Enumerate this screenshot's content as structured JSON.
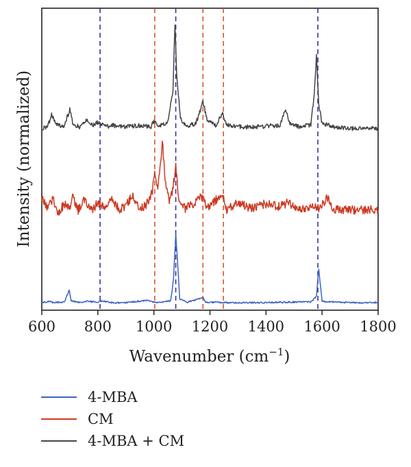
{
  "chart_data": {
    "type": "line",
    "title": "",
    "xlabel": "Wavenumber (cm",
    "xlabel_sup": "−1",
    "xlabel_close": ")",
    "ylabel": "Intensity (normalized)",
    "xlim": [
      600,
      1800
    ],
    "xticks": [
      600,
      800,
      1000,
      1200,
      1400,
      1600,
      1800
    ],
    "y_ticks_labeled": false,
    "grid": false,
    "legend_placement": "below",
    "series": [
      {
        "name": "4-MBA",
        "color": "#3b62c4",
        "points": [
          [
            600,
            0.02
          ],
          [
            630,
            0.04
          ],
          [
            640,
            0.02
          ],
          [
            680,
            0.03
          ],
          [
            698,
            0.22
          ],
          [
            705,
            0.05
          ],
          [
            740,
            0.02
          ],
          [
            760,
            0.04
          ],
          [
            800,
            0.03
          ],
          [
            808,
            0.05
          ],
          [
            850,
            0.02
          ],
          [
            900,
            0.02
          ],
          [
            980,
            0.06
          ],
          [
            1000,
            0.03
          ],
          [
            1020,
            0.02
          ],
          [
            1060,
            0.05
          ],
          [
            1070,
            0.4
          ],
          [
            1078,
            1.12
          ],
          [
            1084,
            0.7
          ],
          [
            1092,
            0.08
          ],
          [
            1120,
            0.03
          ],
          [
            1175,
            0.1
          ],
          [
            1185,
            0.03
          ],
          [
            1250,
            0.02
          ],
          [
            1400,
            0.02
          ],
          [
            1500,
            0.03
          ],
          [
            1560,
            0.03
          ],
          [
            1580,
            0.12
          ],
          [
            1588,
            0.55
          ],
          [
            1593,
            0.35
          ],
          [
            1600,
            0.04
          ],
          [
            1700,
            0.02
          ],
          [
            1800,
            0.02
          ]
        ]
      },
      {
        "name": "CM",
        "color": "#cc3a22",
        "points": [
          [
            600,
            1.7
          ],
          [
            610,
            1.62
          ],
          [
            620,
            1.55
          ],
          [
            640,
            1.68
          ],
          [
            660,
            1.45
          ],
          [
            680,
            1.6
          ],
          [
            700,
            1.52
          ],
          [
            710,
            1.72
          ],
          [
            730,
            1.5
          ],
          [
            750,
            1.66
          ],
          [
            780,
            1.48
          ],
          [
            800,
            1.62
          ],
          [
            820,
            1.53
          ],
          [
            850,
            1.65
          ],
          [
            880,
            1.5
          ],
          [
            900,
            1.58
          ],
          [
            925,
            1.73
          ],
          [
            950,
            1.5
          ],
          [
            980,
            1.62
          ],
          [
            995,
            1.8
          ],
          [
            1003,
            2.1
          ],
          [
            1012,
            1.85
          ],
          [
            1020,
            2.05
          ],
          [
            1030,
            2.62
          ],
          [
            1040,
            2.0
          ],
          [
            1055,
            1.65
          ],
          [
            1065,
            1.75
          ],
          [
            1078,
            2.2
          ],
          [
            1088,
            1.7
          ],
          [
            1110,
            1.52
          ],
          [
            1140,
            1.6
          ],
          [
            1175,
            1.72
          ],
          [
            1190,
            1.55
          ],
          [
            1220,
            1.65
          ],
          [
            1245,
            1.75
          ],
          [
            1260,
            1.5
          ],
          [
            1300,
            1.62
          ],
          [
            1350,
            1.52
          ],
          [
            1400,
            1.6
          ],
          [
            1450,
            1.55
          ],
          [
            1480,
            1.62
          ],
          [
            1520,
            1.5
          ],
          [
            1570,
            1.58
          ],
          [
            1590,
            1.52
          ],
          [
            1620,
            1.7
          ],
          [
            1640,
            1.52
          ],
          [
            1700,
            1.5
          ],
          [
            1750,
            1.5
          ],
          [
            1800,
            1.5
          ]
        ]
      },
      {
        "name": "4-MBA + CM",
        "color": "#444444",
        "points": [
          [
            600,
            2.8
          ],
          [
            620,
            2.82
          ],
          [
            635,
            3.02
          ],
          [
            648,
            2.9
          ],
          [
            660,
            2.85
          ],
          [
            680,
            2.84
          ],
          [
            700,
            3.1
          ],
          [
            712,
            2.86
          ],
          [
            740,
            2.82
          ],
          [
            760,
            2.95
          ],
          [
            780,
            2.85
          ],
          [
            800,
            2.9
          ],
          [
            830,
            2.83
          ],
          [
            850,
            2.85
          ],
          [
            900,
            2.83
          ],
          [
            950,
            2.85
          ],
          [
            990,
            2.83
          ],
          [
            1000,
            2.93
          ],
          [
            1010,
            2.86
          ],
          [
            1030,
            2.85
          ],
          [
            1050,
            2.9
          ],
          [
            1068,
            3.4
          ],
          [
            1075,
            4.45
          ],
          [
            1082,
            3.6
          ],
          [
            1095,
            2.95
          ],
          [
            1120,
            2.84
          ],
          [
            1150,
            2.88
          ],
          [
            1175,
            3.22
          ],
          [
            1190,
            2.95
          ],
          [
            1220,
            2.84
          ],
          [
            1245,
            3.05
          ],
          [
            1260,
            2.86
          ],
          [
            1300,
            2.83
          ],
          [
            1350,
            2.82
          ],
          [
            1400,
            2.84
          ],
          [
            1450,
            2.85
          ],
          [
            1470,
            3.1
          ],
          [
            1485,
            2.88
          ],
          [
            1520,
            2.83
          ],
          [
            1560,
            2.86
          ],
          [
            1572,
            3.35
          ],
          [
            1580,
            3.95
          ],
          [
            1588,
            3.2
          ],
          [
            1600,
            2.88
          ],
          [
            1650,
            2.82
          ],
          [
            1700,
            2.8
          ],
          [
            1750,
            2.8
          ],
          [
            1800,
            2.8
          ]
        ]
      }
    ],
    "reference_lines": [
      {
        "x": 808,
        "color": "#3a2fa0"
      },
      {
        "x": 1003,
        "color": "#d9542a"
      },
      {
        "x": 1078,
        "color": "#3a2fa0"
      },
      {
        "x": 1175,
        "color": "#d9542a"
      },
      {
        "x": 1248,
        "color": "#d9542a"
      },
      {
        "x": 1585,
        "color": "#3a2fa0"
      }
    ]
  }
}
